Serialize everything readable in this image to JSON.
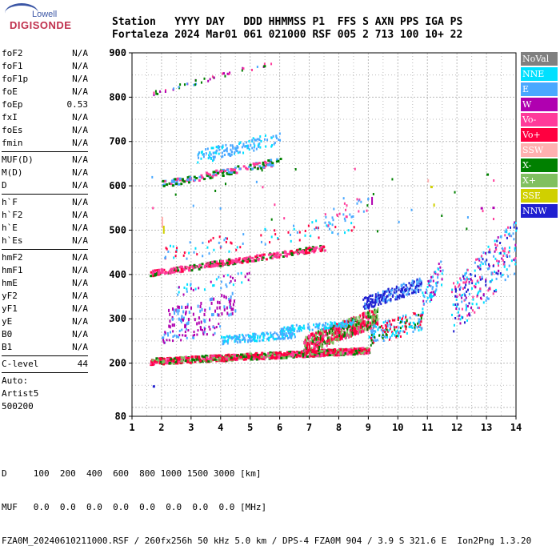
{
  "logo": {
    "top": "Lowell",
    "bottom": "DIGISONDE"
  },
  "header": {
    "row1": "Station   YYYY DAY   DDD HHMMSS P1  FFS S AXN PPS IGA PS",
    "row2": "Fortaleza 2024 Mar01 061 021000 RSF 005 2 713 100 10+ 22"
  },
  "params": [
    {
      "name": "foF2",
      "value": "N/A"
    },
    {
      "name": "foF1",
      "value": "N/A"
    },
    {
      "name": "foF1p",
      "value": "N/A"
    },
    {
      "name": "foE",
      "value": "N/A"
    },
    {
      "name": "foEp",
      "value": "0.53"
    },
    {
      "name": "fxI",
      "value": "N/A"
    },
    {
      "name": "foEs",
      "value": "N/A"
    },
    {
      "name": "fmin",
      "value": "N/A"
    },
    {
      "sep": true
    },
    {
      "name": "MUF(D)",
      "value": "N/A"
    },
    {
      "name": "M(D)",
      "value": "N/A"
    },
    {
      "name": "D",
      "value": "N/A"
    },
    {
      "sep": true
    },
    {
      "name": "h`F",
      "value": "N/A"
    },
    {
      "name": "h`F2",
      "value": "N/A"
    },
    {
      "name": "h`E",
      "value": "N/A"
    },
    {
      "name": "h`Es",
      "value": "N/A"
    },
    {
      "sep": true
    },
    {
      "name": "hmF2",
      "value": "N/A"
    },
    {
      "name": "hmF1",
      "value": "N/A"
    },
    {
      "name": "hmE",
      "value": "N/A"
    },
    {
      "name": "yF2",
      "value": "N/A"
    },
    {
      "name": "yF1",
      "value": "N/A"
    },
    {
      "name": "yE",
      "value": "N/A"
    },
    {
      "name": "B0",
      "value": "N/A"
    },
    {
      "name": "B1",
      "value": "N/A"
    },
    {
      "sep": true
    },
    {
      "name": "C-level",
      "value": "44"
    },
    {
      "sep": true
    },
    {
      "name": "Auto:",
      "value": ""
    },
    {
      "name": "Artist5",
      "value": ""
    },
    {
      "name": "500200",
      "value": ""
    }
  ],
  "bottom": {
    "d_row": "D     100  200  400  600  800 1000 1500 3000 [km]",
    "muf_row": "MUF   0.0  0.0  0.0  0.0  0.0  0.0  0.0  0.0 [MHz]",
    "footer": "FZA0M_20240610211000.RSF / 260fx256h 50 kHz 5.0 km / DPS-4 FZA0M 904 / 3.9 S 321.6 E  Ion2Png 1.3.20"
  },
  "legend": [
    {
      "label": "NoVal",
      "color": "#808080"
    },
    {
      "label": "NNE",
      "color": "#00e0ff"
    },
    {
      "label": "E",
      "color": "#4aa8ff"
    },
    {
      "label": "W",
      "color": "#b000b0"
    },
    {
      "label": "Vo-",
      "color": "#ff3a9a"
    },
    {
      "label": "Vo+",
      "color": "#ff0040"
    },
    {
      "label": "SSW",
      "color": "#ffb0b0"
    },
    {
      "label": "X-",
      "color": "#008000"
    },
    {
      "label": "X+",
      "color": "#80c060"
    },
    {
      "label": "SSE",
      "color": "#d0d000"
    },
    {
      "label": "NNW",
      "color": "#2020d0"
    }
  ],
  "chart_data": {
    "type": "scatter",
    "xlim": [
      1,
      14
    ],
    "ylim": [
      80,
      900
    ],
    "xticks": [
      1,
      2,
      3,
      4,
      5,
      6,
      7,
      8,
      9,
      10,
      11,
      12,
      13,
      14
    ],
    "yticks": [
      80,
      200,
      300,
      400,
      500,
      600,
      700,
      800,
      900
    ],
    "grid": true,
    "traces": [
      {
        "name": "Vo+",
        "f": [
          1.6,
          9.2
        ],
        "h": [
          205,
          225
        ],
        "color": "#ff0040"
      },
      {
        "name": "X-",
        "f": [
          2.0,
          9.0
        ],
        "h": [
          210,
          230
        ],
        "color": "#008000"
      },
      {
        "name": "Vo-",
        "f": [
          1.6,
          7.5
        ],
        "h": [
          402,
          460
        ],
        "color": "#ff3a9a"
      },
      {
        "name": "E",
        "f": [
          2.0,
          6.0
        ],
        "h": [
          600,
          700
        ],
        "color": "#4aa8ff"
      },
      {
        "name": "NNW",
        "f": [
          8.8,
          10.8
        ],
        "h": [
          330,
          370
        ],
        "color": "#2020d0"
      }
    ]
  }
}
